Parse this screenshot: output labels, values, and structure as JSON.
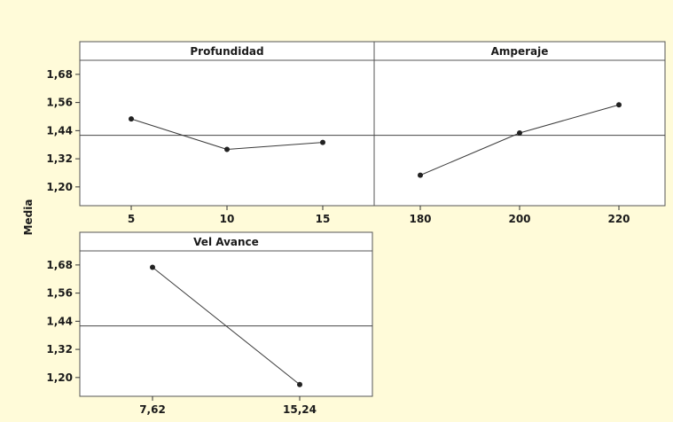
{
  "chart_data": {
    "type": "line",
    "ylabel": "Media",
    "ylim": [
      1.12,
      1.74
    ],
    "yticks": [
      1.2,
      1.32,
      1.44,
      1.56,
      1.68
    ],
    "ytick_labels": [
      "1,20",
      "1,32",
      "1,44",
      "1,56",
      "1,68"
    ],
    "mean_line": 1.42,
    "colors": {
      "background": "#fffbd9",
      "plot_background": "#ffffff",
      "line": "#3a3a3a",
      "marker": "#222222"
    },
    "panels": [
      {
        "title": "Profundidad",
        "x": [
          5,
          10,
          15
        ],
        "x_labels": [
          "5",
          "10",
          "15"
        ],
        "values": [
          1.49,
          1.36,
          1.39
        ]
      },
      {
        "title": "Amperaje",
        "x": [
          180,
          200,
          220
        ],
        "x_labels": [
          "180",
          "200",
          "220"
        ],
        "values": [
          1.25,
          1.43,
          1.55
        ]
      },
      {
        "title": "Vel Avance",
        "x": [
          7.62,
          15.24
        ],
        "x_labels": [
          "7,62",
          "15,24"
        ],
        "values": [
          1.67,
          1.17
        ]
      }
    ]
  }
}
